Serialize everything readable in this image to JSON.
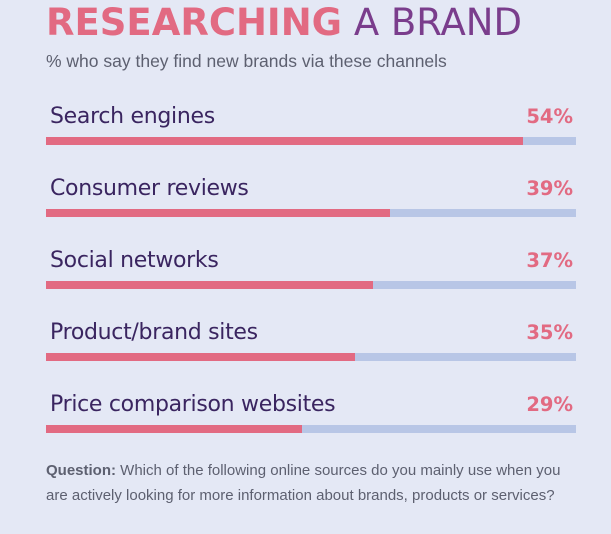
{
  "title": {
    "bold": "RESEARCHING",
    "rest": "A BRAND"
  },
  "subtitle": "% who say they find new brands via these channels",
  "colors": {
    "accent": "#e26a82",
    "purple": "#7a3d8c",
    "track": "#b8c6e6"
  },
  "chart_data": {
    "type": "bar",
    "orientation": "horizontal",
    "title": "RESEARCHING A BRAND",
    "subtitle": "% who say they find new brands via these channels",
    "categories": [
      "Search engines",
      "Consumer reviews",
      "Social networks",
      "Product/brand sites",
      "Price comparison websites"
    ],
    "values": [
      54,
      39,
      37,
      35,
      29
    ],
    "value_labels": [
      "54%",
      "39%",
      "37%",
      "35%",
      "29%"
    ],
    "xlim": [
      0,
      60
    ],
    "grid": false,
    "legend": "none"
  },
  "footnote": {
    "label": "Question:",
    "text": "Which of the following online sources do you mainly use when you are actively looking for more information about brands, products or services?"
  }
}
